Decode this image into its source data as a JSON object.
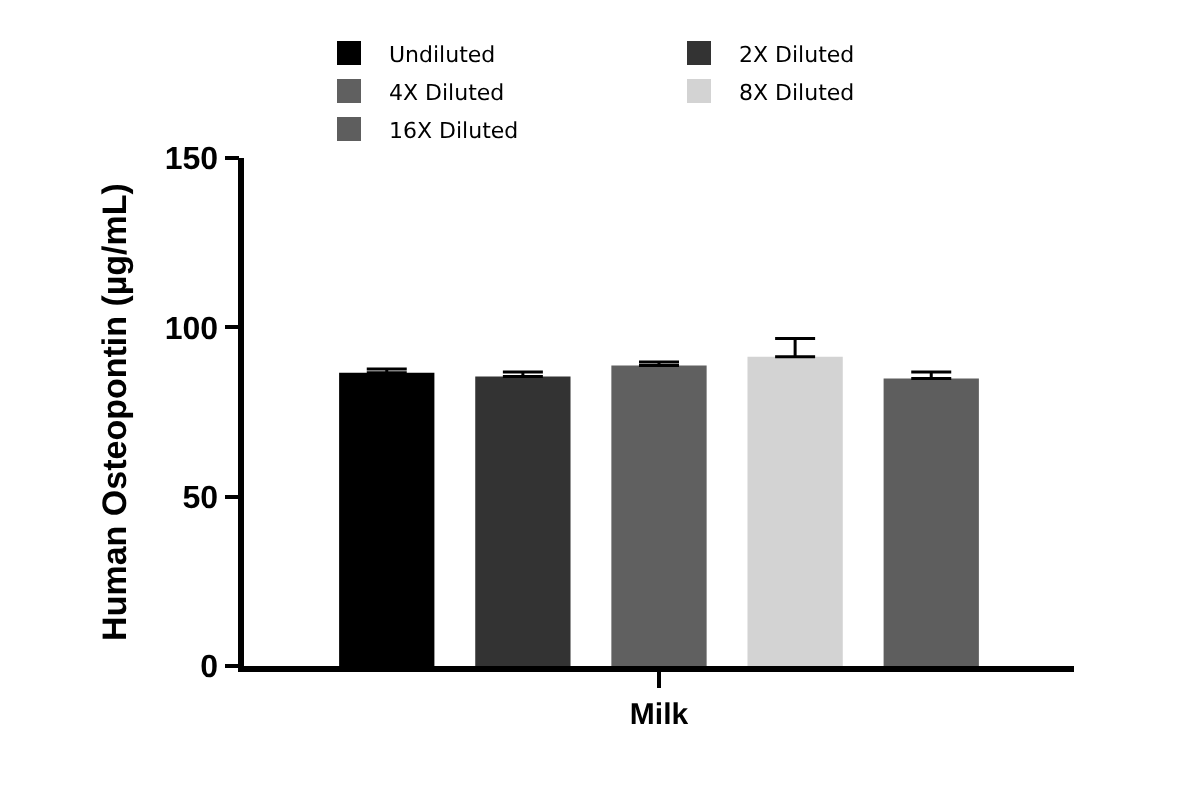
{
  "chart_data": {
    "type": "bar",
    "ylabel": "Human Osteopontin (µg/mL)",
    "categories": [
      "Milk"
    ],
    "series": [
      {
        "name": "Undiluted",
        "color": "#000000",
        "values": [
          86.6
        ],
        "errors": [
          [
            86.6,
            87.7
          ]
        ]
      },
      {
        "name": "2X Diluted",
        "color": "#333333",
        "values": [
          85.5
        ],
        "errors": [
          [
            85.5,
            86.8
          ]
        ]
      },
      {
        "name": "4X Diluted",
        "color": "#606060",
        "values": [
          88.7
        ],
        "errors": [
          [
            88.7,
            89.8
          ]
        ]
      },
      {
        "name": "8X Diluted",
        "color": "#d3d3d3",
        "values": [
          91.3
        ],
        "errors": [
          [
            91.3,
            96.7
          ]
        ]
      },
      {
        "name": "16X Diluted",
        "color": "#5e5e5e",
        "values": [
          84.9
        ],
        "errors": [
          [
            84.9,
            86.8
          ]
        ]
      }
    ],
    "ylim": [
      0,
      150
    ],
    "yticks": [
      0,
      50,
      100,
      150
    ],
    "legend": "top"
  }
}
